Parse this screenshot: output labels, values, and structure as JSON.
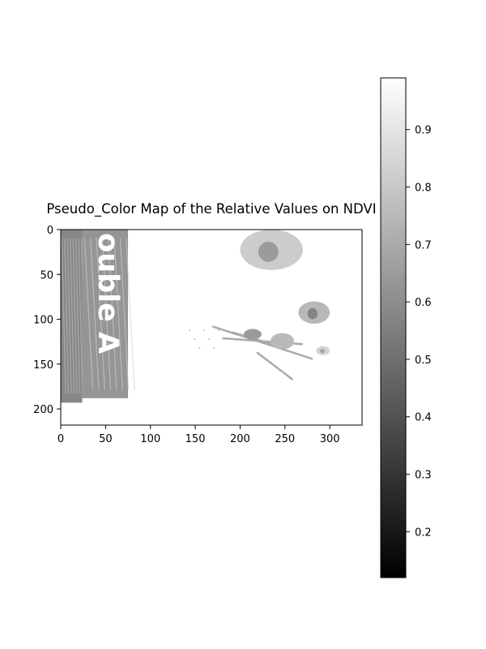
{
  "chart_data": {
    "type": "heatmap",
    "title": "Pseudo_Color Map of the Relative Values on NDVI",
    "colormap": "gray",
    "x_ticks": [
      0,
      50,
      100,
      150,
      200,
      250,
      300
    ],
    "y_ticks": [
      0,
      50,
      100,
      150,
      200
    ],
    "xlim": [
      0,
      336
    ],
    "ylim": [
      218,
      0
    ],
    "colorbar": {
      "range": [
        0.12,
        0.99
      ],
      "ticks": [
        0.2,
        0.3,
        0.4,
        0.5,
        0.6,
        0.7,
        0.8,
        0.9
      ]
    },
    "image_text": "ouble A",
    "image_regions": [
      {
        "name": "left-strip",
        "x": [
          0,
          24
        ],
        "y": [
          0,
          193
        ],
        "value": 0.58
      },
      {
        "name": "label-panel",
        "x": [
          24,
          75
        ],
        "y": [
          0,
          188
        ],
        "value": 0.63
      },
      {
        "name": "leaf-cluster-top",
        "x": [
          200,
          270
        ],
        "y": [
          0,
          45
        ],
        "value": 0.8
      },
      {
        "name": "leaf-right",
        "x": [
          265,
          300
        ],
        "y": [
          80,
          105
        ],
        "value": 0.72
      },
      {
        "name": "stems-center",
        "x": [
          170,
          280
        ],
        "y": [
          105,
          170
        ],
        "value": 0.7
      },
      {
        "name": "leaf-small",
        "x": [
          285,
          300
        ],
        "y": [
          130,
          140
        ],
        "value": 0.82
      }
    ]
  }
}
